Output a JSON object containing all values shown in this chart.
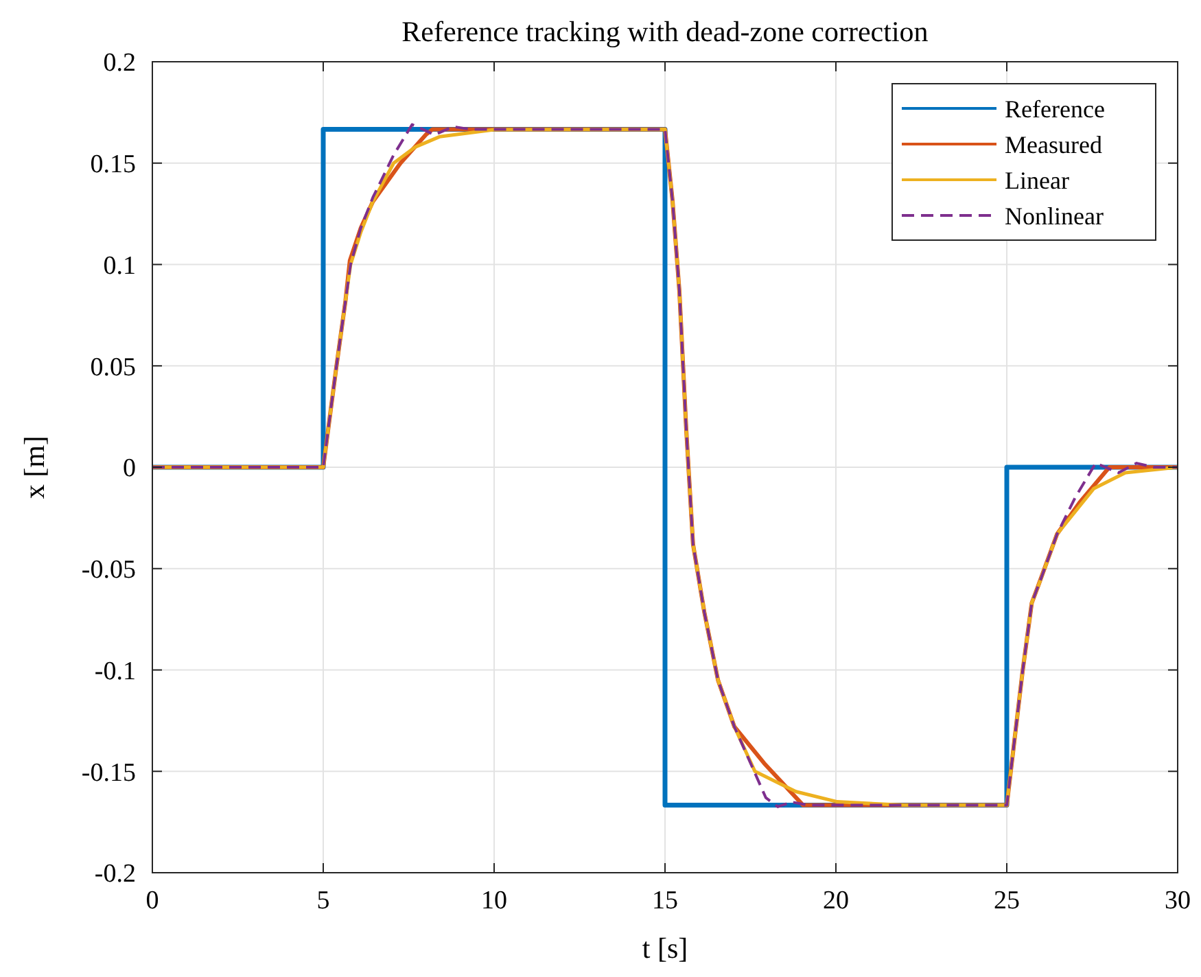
{
  "chart_data": {
    "type": "line",
    "title": "Reference tracking with dead-zone correction",
    "xlabel": "t [s]",
    "ylabel": "x [m]",
    "xlim": [
      0,
      30
    ],
    "xticks": [
      0,
      5,
      10,
      15,
      20,
      25,
      30
    ],
    "ylim": [
      -0.2,
      0.2
    ],
    "yticks": [
      -0.2,
      -0.15,
      -0.1,
      -0.05,
      0,
      0.05,
      0.1,
      0.15,
      0.2
    ],
    "grid": true,
    "legend": "top right",
    "line_style": "solid",
    "series": [
      {
        "name": "Reference",
        "color": "#0072bd",
        "x": [
          0,
          5,
          5,
          15,
          15,
          25,
          25,
          30
        ],
        "values": [
          0,
          0,
          0.1667,
          0.1667,
          -0.1667,
          -0.1667,
          0,
          0
        ]
      },
      {
        "name": "Measured",
        "color": "#d95319",
        "x": [
          0,
          5,
          5.38,
          5.65,
          5.78,
          6.1,
          6.45,
          7.26,
          8.0,
          8.2,
          15,
          15.22,
          15.42,
          15.62,
          15.82,
          16.15,
          16.55,
          17.03,
          17.9,
          19.04,
          25,
          25.46,
          25.73,
          25.93,
          26.47,
          27.13,
          28.0,
          30
        ],
        "values": [
          0,
          0,
          0.049,
          0.082,
          0.102,
          0.118,
          0.131,
          0.15,
          0.164,
          0.1667,
          0.1667,
          0.1315,
          0.087,
          0.019,
          -0.038,
          -0.0715,
          -0.105,
          -0.128,
          -0.146,
          -0.1667,
          -0.1667,
          -0.101,
          -0.067,
          -0.058,
          -0.033,
          -0.0174,
          0,
          0
        ]
      },
      {
        "name": "Linear",
        "color": "#edb120",
        "x": [
          0,
          5,
          5.38,
          5.65,
          5.8,
          6.1,
          6.45,
          7.06,
          7.7,
          8.4,
          10,
          15,
          15.22,
          15.42,
          15.62,
          15.82,
          16.15,
          16.55,
          17.03,
          17.63,
          18.83,
          20.04,
          22,
          25,
          25.46,
          25.73,
          26.0,
          26.47,
          27.54,
          28.47,
          30
        ],
        "values": [
          0,
          0,
          0.049,
          0.082,
          0.1,
          0.116,
          0.131,
          0.15,
          0.158,
          0.163,
          0.1665,
          0.1667,
          0.1315,
          0.087,
          0.019,
          -0.038,
          -0.0715,
          -0.105,
          -0.128,
          -0.15,
          -0.16,
          -0.165,
          -0.1667,
          -0.1667,
          -0.101,
          -0.067,
          -0.055,
          -0.033,
          -0.0106,
          -0.0027,
          0
        ]
      },
      {
        "name": "Nonlinear",
        "color": "#7e2f8e",
        "line_style": "dashed",
        "x": [
          0,
          5,
          5.38,
          5.65,
          5.8,
          6.1,
          6.45,
          7.06,
          7.6,
          8.26,
          8.8,
          9.3,
          15,
          15.22,
          15.42,
          15.62,
          15.82,
          16.15,
          16.55,
          17.03,
          17.95,
          18.3,
          18.7,
          19.2,
          25,
          25.46,
          25.73,
          26.0,
          26.47,
          27.0,
          27.6,
          28.27,
          28.8,
          29.3,
          30
        ],
        "values": [
          0,
          0,
          0.049,
          0.082,
          0.1,
          0.118,
          0.133,
          0.154,
          0.169,
          0.164,
          0.168,
          0.1667,
          0.1667,
          0.1315,
          0.087,
          0.019,
          -0.038,
          -0.0715,
          -0.105,
          -0.128,
          -0.163,
          -0.1675,
          -0.1651,
          -0.1667,
          -0.1667,
          -0.101,
          -0.067,
          -0.055,
          -0.033,
          -0.015,
          0.002,
          -0.0027,
          0.002,
          0,
          0
        ]
      }
    ]
  }
}
